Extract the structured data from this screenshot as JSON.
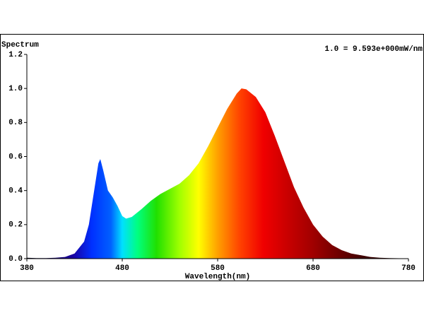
{
  "chart_data": {
    "type": "area",
    "title": "Spectrum",
    "annotation": "1.0 = 9.593e+000mW/nm",
    "x_label": "Wavelength(nm)",
    "x": [
      380,
      390,
      400,
      410,
      420,
      430,
      440,
      445,
      450,
      455,
      457,
      460,
      465,
      470,
      475,
      480,
      484,
      490,
      500,
      510,
      520,
      530,
      540,
      550,
      560,
      570,
      580,
      590,
      600,
      605,
      610,
      620,
      630,
      640,
      650,
      660,
      670,
      680,
      690,
      700,
      710,
      720,
      730,
      740,
      750,
      760,
      770,
      780
    ],
    "values": [
      0.005,
      0.003,
      0.003,
      0.005,
      0.01,
      0.03,
      0.1,
      0.2,
      0.38,
      0.56,
      0.585,
      0.52,
      0.4,
      0.36,
      0.31,
      0.25,
      0.235,
      0.245,
      0.29,
      0.34,
      0.38,
      0.41,
      0.44,
      0.49,
      0.56,
      0.66,
      0.77,
      0.88,
      0.97,
      1.0,
      0.995,
      0.95,
      0.86,
      0.72,
      0.57,
      0.42,
      0.3,
      0.2,
      0.13,
      0.08,
      0.05,
      0.03,
      0.02,
      0.01,
      0.005,
      0.003,
      0.002,
      0.001
    ],
    "xlim": [
      380,
      780
    ],
    "xticks": [
      380,
      480,
      580,
      680,
      780
    ],
    "ylim": [
      0,
      1.2
    ],
    "yticks": [
      {
        "value": 0,
        "label": "0.0"
      },
      0.2,
      0.4,
      0.6,
      0.8,
      {
        "value": 1,
        "label": "1.0"
      },
      1.2
    ],
    "grid": false
  }
}
